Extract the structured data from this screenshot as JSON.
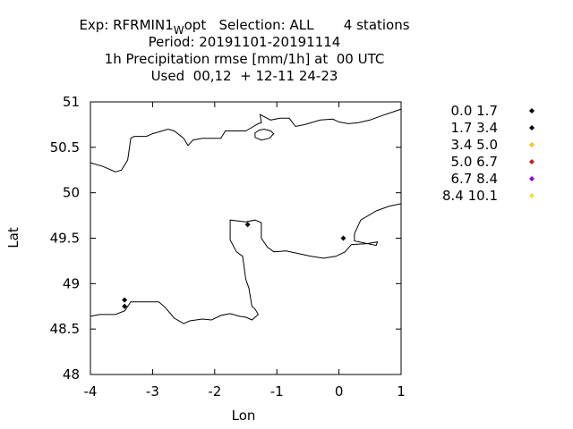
{
  "title": {
    "line1_prefix": "Exp: RFRMIN1",
    "line1_sub": "W",
    "line1_suffix": "opt   Selection: ALL       4 stations",
    "line2": "Period: 20191101-20191114",
    "line3": "1h Precipitation rmse [mm/1h] at  00 UTC",
    "line4": "Used  00,12  + 12-11 24-23"
  },
  "chart_data": {
    "type": "scatter",
    "xlabel": "Lon",
    "ylabel": "Lat",
    "xlim": [
      -4,
      1
    ],
    "ylim": [
      48,
      51
    ],
    "x_ticks": [
      -4,
      -3,
      -2,
      -1,
      0,
      1
    ],
    "x_tick_labels": [
      "-4",
      "-3",
      "-2",
      "-1",
      "0",
      "1"
    ],
    "y_ticks": [
      48,
      48.5,
      49,
      49.5,
      50,
      50.5,
      51
    ],
    "y_tick_labels": [
      "48",
      "48.5",
      "49",
      "49.5",
      "50",
      "50.5",
      "51"
    ],
    "legend_position": "right",
    "legend": [
      {
        "label": "0.0 1.7",
        "color": "#000000"
      },
      {
        "label": "1.7 3.4",
        "color": "#000000"
      },
      {
        "label": "3.4 5.0",
        "color": "#ffc020"
      },
      {
        "label": "5.0 6.7",
        "color": "#c02020"
      },
      {
        "label": "6.7 8.4",
        "color": "#9400d3"
      },
      {
        "label": "8.4 10.1",
        "color": "#f0e040"
      }
    ],
    "points": [
      {
        "lon": -3.45,
        "lat": 48.82,
        "color": "#000000"
      },
      {
        "lon": -3.45,
        "lat": 48.75,
        "color": "#000000"
      },
      {
        "lon": -1.47,
        "lat": 49.65,
        "color": "#000000"
      },
      {
        "lon": 0.07,
        "lat": 49.5,
        "color": "#000000"
      }
    ],
    "coastlines": [
      [
        [
          -4,
          50.33
        ],
        [
          -3.8,
          50.29
        ],
        [
          -3.6,
          50.23
        ],
        [
          -3.5,
          50.25
        ],
        [
          -3.4,
          50.36
        ],
        [
          -3.35,
          50.6
        ],
        [
          -3.3,
          50.62
        ],
        [
          -3.1,
          50.62
        ],
        [
          -3.0,
          50.65
        ],
        [
          -2.75,
          50.7
        ],
        [
          -2.65,
          50.68
        ],
        [
          -2.5,
          50.6
        ],
        [
          -2.43,
          50.52
        ],
        [
          -2.35,
          50.58
        ],
        [
          -2.2,
          50.6
        ],
        [
          -2.0,
          50.6
        ],
        [
          -1.9,
          50.6
        ],
        [
          -1.83,
          50.68
        ],
        [
          -1.5,
          50.68
        ],
        [
          -1.4,
          50.72
        ],
        [
          -1.3,
          50.76
        ],
        [
          -1.25,
          50.77
        ],
        [
          -1.27,
          50.86
        ],
        [
          -1.1,
          50.8
        ],
        [
          -0.95,
          50.82
        ],
        [
          -0.8,
          50.82
        ],
        [
          -0.7,
          50.73
        ],
        [
          -0.55,
          50.75
        ],
        [
          -0.3,
          50.8
        ],
        [
          -0.1,
          50.81
        ],
        [
          0.0,
          50.78
        ],
        [
          0.15,
          50.76
        ],
        [
          0.3,
          50.77
        ],
        [
          0.5,
          50.8
        ],
        [
          0.7,
          50.85
        ],
        [
          1.0,
          50.92
        ]
      ],
      [
        [
          -1.2,
          50.7
        ],
        [
          -1.1,
          50.68
        ],
        [
          -1.05,
          50.65
        ],
        [
          -1.12,
          50.6
        ],
        [
          -1.25,
          50.58
        ],
        [
          -1.35,
          50.61
        ],
        [
          -1.35,
          50.66
        ],
        [
          -1.28,
          50.69
        ],
        [
          -1.2,
          50.7
        ]
      ],
      [
        [
          -4,
          48.64
        ],
        [
          -3.85,
          48.66
        ],
        [
          -3.6,
          48.66
        ],
        [
          -3.45,
          48.7
        ],
        [
          -3.35,
          48.8
        ],
        [
          -3.2,
          48.8
        ],
        [
          -3.0,
          48.8
        ],
        [
          -2.9,
          48.8
        ],
        [
          -2.8,
          48.74
        ],
        [
          -2.65,
          48.62
        ],
        [
          -2.5,
          48.56
        ],
        [
          -2.4,
          48.59
        ],
        [
          -2.2,
          48.61
        ],
        [
          -2.05,
          48.6
        ],
        [
          -1.9,
          48.65
        ],
        [
          -1.75,
          48.67
        ],
        [
          -1.6,
          48.64
        ],
        [
          -1.5,
          48.63
        ],
        [
          -1.4,
          48.6
        ],
        [
          -1.3,
          48.66
        ],
        [
          -1.35,
          48.72
        ],
        [
          -1.4,
          48.75
        ],
        [
          -1.45,
          48.95
        ],
        [
          -1.5,
          49.05
        ],
        [
          -1.55,
          49.3
        ],
        [
          -1.65,
          49.35
        ],
        [
          -1.75,
          49.48
        ],
        [
          -1.75,
          49.7
        ],
        [
          -1.5,
          49.68
        ],
        [
          -1.35,
          49.7
        ],
        [
          -1.25,
          49.67
        ],
        [
          -1.25,
          49.5
        ],
        [
          -1.15,
          49.4
        ],
        [
          -1.05,
          49.35
        ],
        [
          -0.85,
          49.36
        ],
        [
          -0.65,
          49.33
        ],
        [
          -0.45,
          49.3
        ],
        [
          -0.25,
          49.28
        ],
        [
          -0.05,
          49.3
        ],
        [
          0.1,
          49.35
        ],
        [
          0.2,
          49.43
        ],
        [
          0.45,
          49.44
        ],
        [
          0.62,
          49.46
        ],
        [
          0.6,
          49.42
        ],
        [
          0.25,
          49.47
        ],
        [
          0.25,
          49.55
        ],
        [
          0.35,
          49.7
        ],
        [
          0.6,
          49.8
        ],
        [
          0.8,
          49.85
        ],
        [
          1.0,
          49.88
        ]
      ]
    ]
  }
}
